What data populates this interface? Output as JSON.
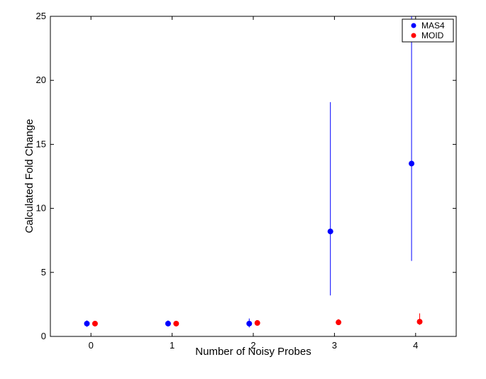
{
  "chart_data": {
    "type": "scatter",
    "title": "",
    "xlabel": "Number of Noisy Probes",
    "ylabel": "Calculated Fold Change",
    "xlim": [
      -0.5,
      4.5
    ],
    "ylim": [
      0,
      25
    ],
    "xticks": [
      "0",
      "1",
      "2",
      "3",
      "4"
    ],
    "yticks": [
      "0",
      "5",
      "10",
      "15",
      "20",
      "25"
    ],
    "grid": false,
    "legend_position": "top-right",
    "series": [
      {
        "name": "MAS4",
        "color": "#0000ff",
        "x": [
          0,
          1,
          2,
          3,
          4
        ],
        "y": [
          1.0,
          1.0,
          1.0,
          8.2,
          13.5
        ],
        "err_low": [
          0.75,
          0.8,
          0.7,
          3.2,
          5.9
        ],
        "err_high": [
          1.25,
          1.25,
          1.4,
          18.3,
          25.0
        ]
      },
      {
        "name": "MOID",
        "color": "#ff0000",
        "x": [
          0,
          1,
          2,
          3,
          4
        ],
        "y": [
          1.0,
          1.0,
          1.05,
          1.1,
          1.15
        ],
        "err_low": [
          0.9,
          0.9,
          0.95,
          0.9,
          0.9
        ],
        "err_high": [
          1.1,
          1.1,
          1.2,
          1.35,
          1.8
        ]
      }
    ]
  }
}
